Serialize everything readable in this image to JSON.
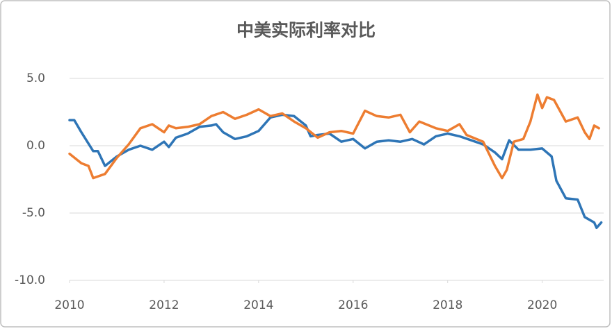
{
  "chart_data": {
    "type": "line",
    "title": "中美实际利率对比",
    "xlim": [
      2010,
      2021.3
    ],
    "xticks": [
      2010,
      2012,
      2014,
      2016,
      2018,
      2020
    ],
    "ylim": [
      -10,
      5
    ],
    "yticks": [
      {
        "value": -10,
        "label": "-10.0"
      },
      {
        "value": -5,
        "label": "-5.0"
      },
      {
        "value": 0,
        "label": "0.0"
      },
      {
        "value": 5,
        "label": "5.0"
      }
    ],
    "grid": true,
    "series": [
      {
        "color": "#2e75b6",
        "x": [
          2010.0,
          2010.1,
          2010.25,
          2010.5,
          2010.6,
          2010.75,
          2011.0,
          2011.25,
          2011.5,
          2011.75,
          2012.0,
          2012.1,
          2012.25,
          2012.5,
          2012.75,
          2013.0,
          2013.1,
          2013.25,
          2013.5,
          2013.75,
          2014.0,
          2014.25,
          2014.5,
          2014.75,
          2015.0,
          2015.1,
          2015.25,
          2015.5,
          2015.75,
          2016.0,
          2016.25,
          2016.5,
          2016.75,
          2017.0,
          2017.25,
          2017.5,
          2017.75,
          2018.0,
          2018.25,
          2018.5,
          2018.75,
          2019.0,
          2019.15,
          2019.3,
          2019.5,
          2019.75,
          2020.0,
          2020.2,
          2020.3,
          2020.5,
          2020.75,
          2020.9,
          2021.1,
          2021.15,
          2021.25
        ],
        "values": [
          1.9,
          1.9,
          1.0,
          -0.4,
          -0.4,
          -1.5,
          -0.8,
          -0.3,
          0.0,
          -0.3,
          0.3,
          -0.1,
          0.6,
          0.9,
          1.4,
          1.5,
          1.6,
          1.0,
          0.5,
          0.7,
          1.1,
          2.1,
          2.3,
          2.2,
          1.5,
          0.7,
          0.8,
          0.9,
          0.3,
          0.5,
          -0.2,
          0.3,
          0.4,
          0.3,
          0.5,
          0.1,
          0.7,
          0.9,
          0.7,
          0.4,
          0.1,
          -0.5,
          -1.0,
          0.4,
          -0.3,
          -0.3,
          -0.2,
          -0.8,
          -2.6,
          -3.9,
          -4.0,
          -5.3,
          -5.7,
          -6.1,
          -5.7
        ]
      },
      {
        "color": "#ed7d31",
        "x": [
          2010.0,
          2010.25,
          2010.4,
          2010.5,
          2010.75,
          2011.0,
          2011.25,
          2011.5,
          2011.75,
          2012.0,
          2012.1,
          2012.25,
          2012.5,
          2012.75,
          2013.0,
          2013.25,
          2013.5,
          2013.75,
          2014.0,
          2014.25,
          2014.5,
          2014.75,
          2015.0,
          2015.25,
          2015.5,
          2015.75,
          2016.0,
          2016.25,
          2016.5,
          2016.75,
          2017.0,
          2017.2,
          2017.4,
          2017.75,
          2018.0,
          2018.25,
          2018.4,
          2018.75,
          2019.0,
          2019.15,
          2019.25,
          2019.4,
          2019.6,
          2019.75,
          2019.9,
          2020.0,
          2020.1,
          2020.25,
          2020.5,
          2020.75,
          2020.9,
          2021.0,
          2021.1,
          2021.2
        ],
        "values": [
          -0.6,
          -1.3,
          -1.5,
          -2.4,
          -2.1,
          -0.9,
          0.1,
          1.3,
          1.6,
          1.0,
          1.5,
          1.3,
          1.4,
          1.6,
          2.2,
          2.5,
          2.0,
          2.3,
          2.7,
          2.2,
          2.4,
          1.8,
          1.3,
          0.6,
          1.0,
          1.1,
          0.9,
          2.6,
          2.2,
          2.1,
          2.3,
          1.0,
          1.8,
          1.3,
          1.1,
          1.6,
          0.8,
          0.3,
          -1.5,
          -2.4,
          -1.8,
          0.3,
          0.5,
          1.8,
          3.8,
          2.8,
          3.6,
          3.4,
          1.8,
          2.1,
          1.0,
          0.5,
          1.5,
          1.3
        ]
      }
    ]
  }
}
